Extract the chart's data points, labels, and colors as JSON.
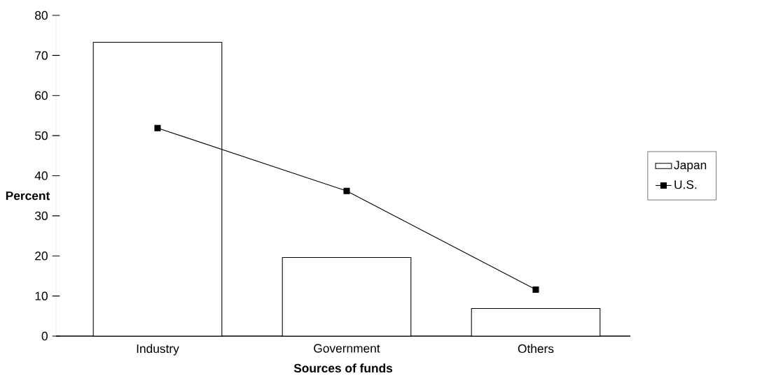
{
  "chart_data": {
    "type": "bar",
    "xlabel": "Sources of funds",
    "ylabel": "Percent",
    "categories": [
      "Industry",
      "Government",
      "Others"
    ],
    "series": [
      {
        "name": "Japan",
        "color": "#ffffff",
        "values": [
          73.3,
          19.6,
          6.9
        ]
      },
      {
        "name": "U.S.",
        "type": "line",
        "color": "#000000",
        "marker": "square",
        "values": [
          51.9,
          36.2,
          11.6
        ]
      }
    ],
    "ylim": [
      0,
      80
    ],
    "yticks": [
      0,
      10,
      20,
      30,
      40,
      50,
      60,
      70,
      80
    ],
    "legend": "right"
  }
}
